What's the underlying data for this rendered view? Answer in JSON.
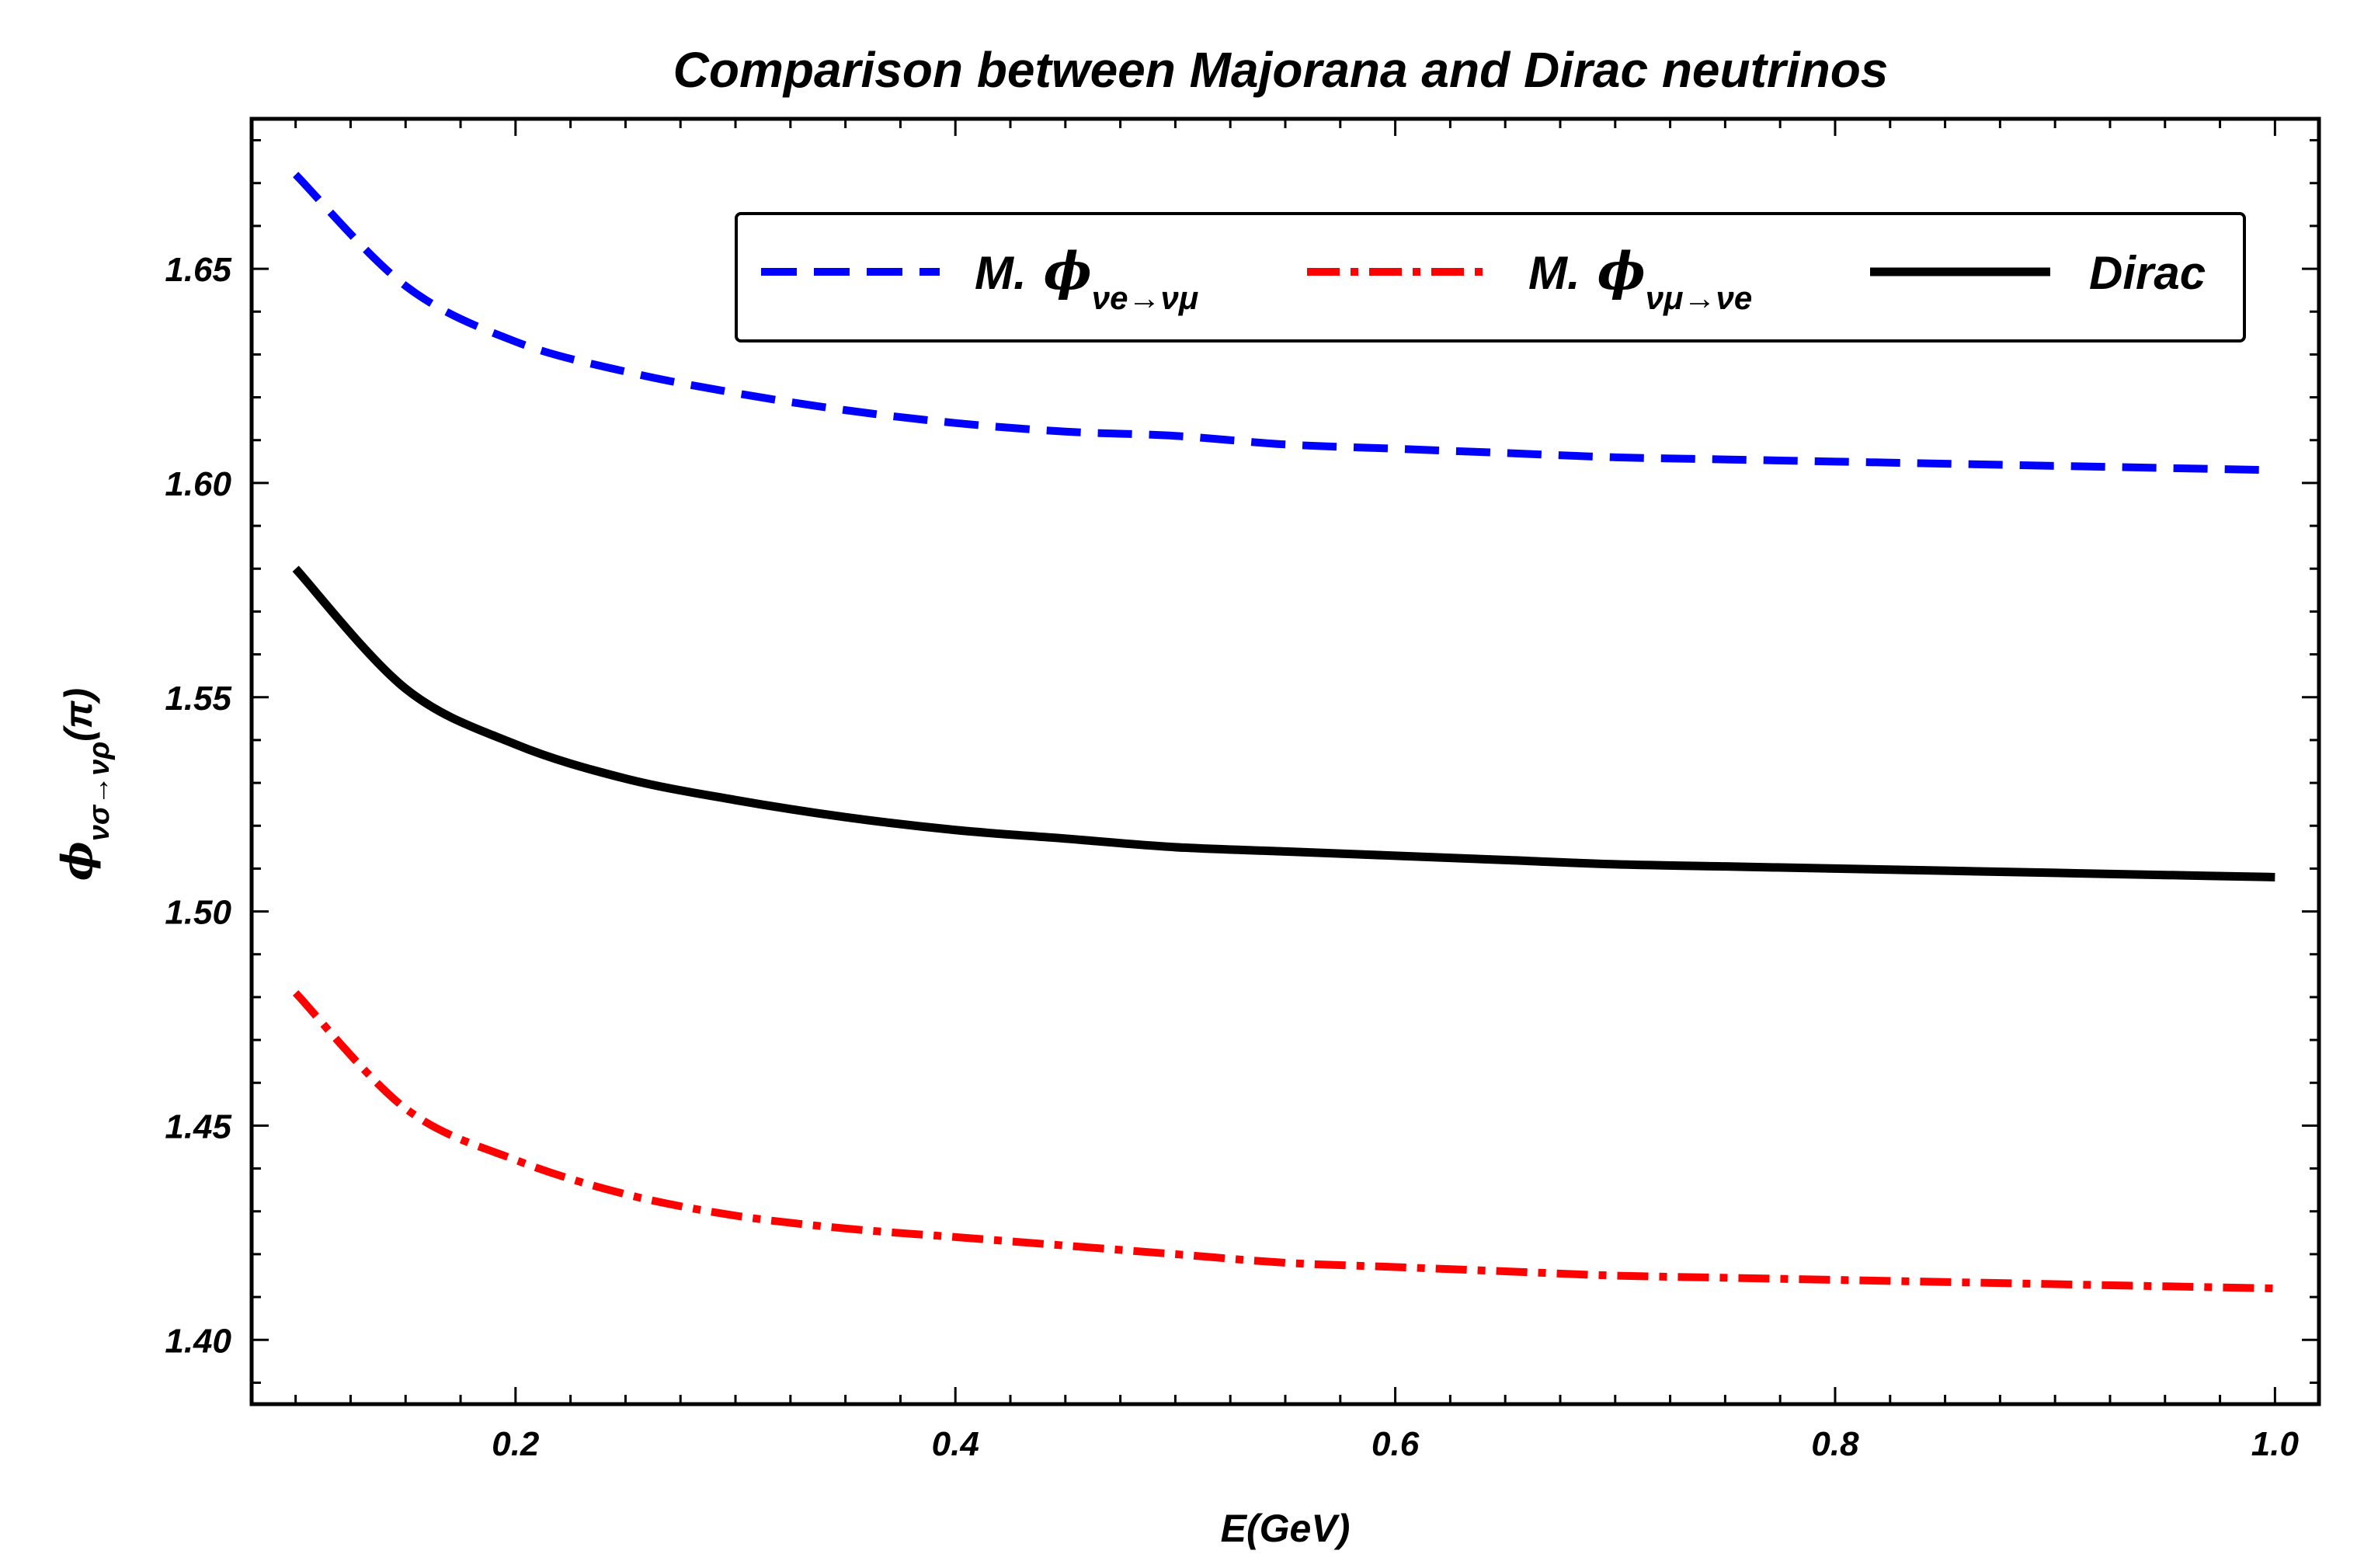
{
  "chart_data": {
    "type": "line",
    "title": "Comparison between Majorana and Dirac neutrinos",
    "xlabel": "E(GeV)",
    "ylabel": {
      "symbol": "ϕ",
      "subscript": "νσ→νρ",
      "unit": "(π)"
    },
    "xlim": [
      0.08,
      1.02
    ],
    "ylim": [
      1.385,
      1.685
    ],
    "x_ticks": [
      0.2,
      0.4,
      0.6,
      0.8,
      1.0
    ],
    "x_tick_labels": [
      "0.2",
      "0.4",
      "0.6",
      "0.8",
      "1.0"
    ],
    "y_ticks": [
      1.4,
      1.45,
      1.5,
      1.55,
      1.6,
      1.65
    ],
    "y_tick_labels": [
      "1.40",
      "1.45",
      "1.50",
      "1.55",
      "1.60",
      "1.65"
    ],
    "grid": false,
    "legend_position": "top-right",
    "series": [
      {
        "name": "M. ϕ νe→νμ",
        "legend_prefix": "M.",
        "legend_symbol": "ϕ",
        "legend_subscript": "νe→νμ",
        "color": "#0000ff",
        "style": "dashed",
        "x": [
          0.1,
          0.15,
          0.2,
          0.25,
          0.3,
          0.35,
          0.4,
          0.45,
          0.5,
          0.55,
          0.6,
          0.65,
          0.7,
          0.75,
          0.8,
          0.85,
          0.9,
          0.95,
          1.0
        ],
        "values": [
          1.672,
          1.646,
          1.633,
          1.626,
          1.621,
          1.617,
          1.614,
          1.612,
          1.611,
          1.609,
          1.608,
          1.607,
          1.606,
          1.6055,
          1.605,
          1.6045,
          1.604,
          1.6035,
          1.603
        ]
      },
      {
        "name": "M. ϕ νμ→νe",
        "legend_prefix": "M.",
        "legend_symbol": "ϕ",
        "legend_subscript": "νμ→νe",
        "color": "#ff0000",
        "style": "dashdot",
        "x": [
          0.1,
          0.15,
          0.2,
          0.25,
          0.3,
          0.35,
          0.4,
          0.45,
          0.5,
          0.55,
          0.6,
          0.65,
          0.7,
          0.75,
          0.8,
          0.85,
          0.9,
          0.95,
          1.0
        ],
        "values": [
          1.481,
          1.454,
          1.442,
          1.434,
          1.429,
          1.426,
          1.424,
          1.422,
          1.42,
          1.418,
          1.417,
          1.416,
          1.415,
          1.4145,
          1.414,
          1.4135,
          1.413,
          1.4125,
          1.412
        ]
      },
      {
        "name": "Dirac",
        "legend_text": "Dirac",
        "color": "#000000",
        "style": "solid",
        "x": [
          0.1,
          0.15,
          0.2,
          0.25,
          0.3,
          0.35,
          0.4,
          0.45,
          0.5,
          0.55,
          0.6,
          0.65,
          0.7,
          0.75,
          0.8,
          0.85,
          0.9,
          0.95,
          1.0
        ],
        "values": [
          1.58,
          1.552,
          1.539,
          1.531,
          1.526,
          1.522,
          1.519,
          1.517,
          1.515,
          1.514,
          1.513,
          1.512,
          1.511,
          1.5105,
          1.51,
          1.5095,
          1.509,
          1.5085,
          1.508
        ]
      }
    ]
  }
}
